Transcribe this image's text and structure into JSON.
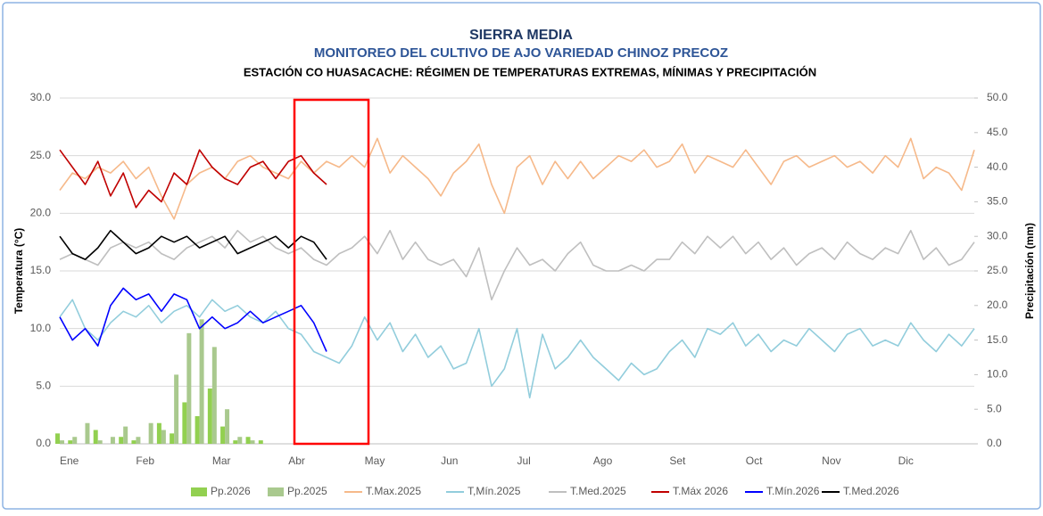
{
  "chart_data": {
    "type": "line",
    "title": "SIERRA MEDIA",
    "subtitle": "MONITOREO DEL CULTIVO DE AJO VARIEDAD CHINOZ PRECOZ",
    "subtitle2": "ESTACIÓN CO HUASACACHE: RÉGIMEN DE TEMPERATURAS EXTREMAS, MÍNIMAS Y PRECIPITACIÓN",
    "ylabel": "Temperatura (°C)",
    "y2label": "Precipitación (mm)",
    "categories": [
      "Ene",
      null,
      null,
      null,
      null,
      null,
      "Feb",
      null,
      null,
      null,
      null,
      null,
      "Mar",
      null,
      null,
      null,
      null,
      null,
      "Abr",
      null,
      null,
      null,
      null,
      null,
      "May",
      null,
      null,
      null,
      null,
      null,
      "Jun",
      null,
      null,
      null,
      null,
      null,
      "Jul",
      null,
      null,
      null,
      null,
      null,
      "Ago",
      null,
      null,
      null,
      null,
      null,
      "Set",
      null,
      null,
      null,
      null,
      null,
      "Oct",
      null,
      null,
      null,
      null,
      null,
      "Nov",
      null,
      null,
      null,
      null,
      null,
      "Dic",
      null,
      null,
      null,
      null,
      null,
      null
    ],
    "ylim": [
      0,
      30
    ],
    "yticks": [
      {
        "value": 0,
        "label": "0.0"
      },
      {
        "value": 5,
        "label": "5.0"
      },
      {
        "value": 10,
        "label": "10.0"
      },
      {
        "value": 15,
        "label": "15.0"
      },
      {
        "value": 20,
        "label": "20.0"
      },
      {
        "value": 25,
        "label": "25.0"
      },
      {
        "value": 30,
        "label": "30.0"
      }
    ],
    "y2lim": [
      0,
      50
    ],
    "y2ticks": [
      {
        "value": 0,
        "label": "0.0"
      },
      {
        "value": 5,
        "label": "5.0"
      },
      {
        "value": 10,
        "label": "10.0"
      },
      {
        "value": 15,
        "label": "15.0"
      },
      {
        "value": 20,
        "label": "20.0"
      },
      {
        "value": 25,
        "label": "25.0"
      },
      {
        "value": 30,
        "label": "30.0"
      },
      {
        "value": 35,
        "label": "35.0"
      },
      {
        "value": 40,
        "label": "40.0"
      },
      {
        "value": 45,
        "label": "45.0"
      },
      {
        "value": 50,
        "label": "50.0"
      }
    ],
    "grid": true,
    "legend": "bottom",
    "series": [
      {
        "name": "Pp.2026",
        "type": "bar",
        "axis": "y2",
        "color": "#92d050",
        "values": [
          1.5,
          0.5,
          0.0,
          2.0,
          0.0,
          1.0,
          0.5,
          0.0,
          3.0,
          1.5,
          6.0,
          4.0,
          8.0,
          2.5,
          0.5,
          1.0,
          0.5,
          0.0,
          0.0,
          0.0,
          0.0,
          0.0,
          null,
          null,
          null,
          null,
          null,
          null,
          null,
          null,
          null,
          null,
          null,
          null,
          null,
          null,
          null,
          null,
          null,
          null,
          null,
          null,
          null,
          null,
          null,
          null,
          null,
          null,
          null,
          null,
          null,
          null,
          null,
          null,
          null,
          null,
          null,
          null,
          null,
          null,
          null,
          null,
          null,
          null,
          null,
          null,
          null,
          null,
          null,
          null,
          null,
          null,
          null
        ]
      },
      {
        "name": "Pp.2025",
        "type": "bar",
        "axis": "y2",
        "color": "#a9c98e",
        "values": [
          0.5,
          1.0,
          3.0,
          0.5,
          1.0,
          2.5,
          1.0,
          3.0,
          2.0,
          10.0,
          16.0,
          18.0,
          14.0,
          5.0,
          1.0,
          0.5,
          0.0,
          0.0,
          0.0,
          0.0,
          0.0,
          0.0,
          0.0,
          0.0,
          0.0,
          0.0,
          0.0,
          0.0,
          0.0,
          0.0,
          0.0,
          0.0,
          0.0,
          0.0,
          0.0,
          0.0,
          0.0,
          0.0,
          0.0,
          0.0,
          0.0,
          0.0,
          0.0,
          0.0,
          0.0,
          0.0,
          0.0,
          0.0,
          0.0,
          0.0,
          0.0,
          0.0,
          0.0,
          0.0,
          0.0,
          0.0,
          0.0,
          0.0,
          0.0,
          0.0,
          0.0,
          0.0,
          0.0,
          0.0,
          0.0,
          0.0,
          0.0,
          0.0,
          0.0,
          0.0,
          0.0,
          0.0,
          0.0
        ]
      },
      {
        "name": "T.Max.2025",
        "color": "#f6b98a",
        "values": [
          22.0,
          23.5,
          23.0,
          24.0,
          23.5,
          24.5,
          23.0,
          24.0,
          21.5,
          19.5,
          22.5,
          23.5,
          24.0,
          23.0,
          24.5,
          25.0,
          24.0,
          23.5,
          23.0,
          24.5,
          23.5,
          24.5,
          24.0,
          25.0,
          24.0,
          26.5,
          23.5,
          25.0,
          24.0,
          23.0,
          21.5,
          23.5,
          24.5,
          26.0,
          22.5,
          20.0,
          24.0,
          25.0,
          22.5,
          24.5,
          23.0,
          24.5,
          23.0,
          24.0,
          25.0,
          24.5,
          25.5,
          24.0,
          24.5,
          26.0,
          23.5,
          25.0,
          24.5,
          24.0,
          25.5,
          24.0,
          22.5,
          24.5,
          25.0,
          24.0,
          24.5,
          25.0,
          24.0,
          24.5,
          23.5,
          25.0,
          24.0,
          26.5,
          23.0,
          24.0,
          23.5,
          22.0,
          25.5
        ]
      },
      {
        "name": "T,Mín.2025",
        "color": "#92cddc",
        "values": [
          11.0,
          12.5,
          10.0,
          9.0,
          10.5,
          11.5,
          11.0,
          12.0,
          10.5,
          11.5,
          12.0,
          11.0,
          12.5,
          11.5,
          12.0,
          11.0,
          10.5,
          11.5,
          10.0,
          9.5,
          8.0,
          7.5,
          7.0,
          8.5,
          11.0,
          9.0,
          10.5,
          8.0,
          9.5,
          7.5,
          8.5,
          6.5,
          7.0,
          10.0,
          5.0,
          6.5,
          10.0,
          4.0,
          9.5,
          6.5,
          7.5,
          9.0,
          7.5,
          6.5,
          5.5,
          7.0,
          6.0,
          6.5,
          8.0,
          9.0,
          7.5,
          10.0,
          9.5,
          10.5,
          8.5,
          9.5,
          8.0,
          9.0,
          8.5,
          10.0,
          9.0,
          8.0,
          9.5,
          10.0,
          8.5,
          9.0,
          8.5,
          10.5,
          9.0,
          8.0,
          9.5,
          8.5,
          10.0
        ]
      },
      {
        "name": "T.Med.2025",
        "color": "#bfbfbf",
        "values": [
          16.0,
          16.5,
          16.0,
          15.5,
          17.0,
          17.5,
          17.0,
          17.5,
          16.5,
          16.0,
          17.0,
          17.5,
          18.0,
          17.0,
          18.5,
          17.5,
          18.0,
          17.0,
          16.5,
          17.0,
          16.0,
          15.5,
          16.5,
          17.0,
          18.0,
          16.5,
          18.5,
          16.0,
          17.5,
          16.0,
          15.5,
          16.0,
          14.5,
          17.0,
          12.5,
          15.0,
          17.0,
          15.5,
          16.0,
          15.0,
          16.5,
          17.5,
          15.5,
          15.0,
          15.0,
          15.5,
          15.0,
          16.0,
          16.0,
          17.5,
          16.5,
          18.0,
          17.0,
          18.0,
          16.5,
          17.5,
          16.0,
          17.0,
          15.5,
          16.5,
          17.0,
          16.0,
          17.5,
          16.5,
          16.0,
          17.0,
          16.5,
          18.5,
          16.0,
          17.0,
          15.5,
          16.0,
          17.5
        ]
      },
      {
        "name": "T.Máx 2026",
        "color": "#c00000",
        "values": [
          25.5,
          24.0,
          22.5,
          24.5,
          21.5,
          23.5,
          20.5,
          22.0,
          21.0,
          23.5,
          22.5,
          25.5,
          24.0,
          23.0,
          22.5,
          24.0,
          24.5,
          23.0,
          24.5,
          25.0,
          23.5,
          22.5,
          null,
          null,
          null,
          null,
          null,
          null,
          null,
          null,
          null,
          null,
          null,
          null,
          null,
          null,
          null,
          null,
          null,
          null,
          null,
          null,
          null,
          null,
          null,
          null,
          null,
          null,
          null,
          null,
          null,
          null,
          null,
          null,
          null,
          null,
          null,
          null,
          null,
          null,
          null,
          null,
          null,
          null,
          null,
          null,
          null,
          null,
          null,
          null,
          null,
          null,
          null
        ]
      },
      {
        "name": "T.Mín.2026",
        "color": "#0000ff",
        "values": [
          11.0,
          9.0,
          10.0,
          8.5,
          12.0,
          13.5,
          12.5,
          13.0,
          11.5,
          13.0,
          12.5,
          10.0,
          11.0,
          10.0,
          10.5,
          11.5,
          10.5,
          11.0,
          11.5,
          12.0,
          10.5,
          8.0,
          null,
          null,
          null,
          null,
          null,
          null,
          null,
          null,
          null,
          null,
          null,
          null,
          null,
          null,
          null,
          null,
          null,
          null,
          null,
          null,
          null,
          null,
          null,
          null,
          null,
          null,
          null,
          null,
          null,
          null,
          null,
          null,
          null,
          null,
          null,
          null,
          null,
          null,
          null,
          null,
          null,
          null,
          null,
          null,
          null,
          null,
          null,
          null,
          null,
          null,
          null
        ]
      },
      {
        "name": "T.Med.2026",
        "color": "#000000",
        "values": [
          18.0,
          16.5,
          16.0,
          17.0,
          18.5,
          17.5,
          16.5,
          17.0,
          18.0,
          17.5,
          18.0,
          17.0,
          17.5,
          18.0,
          16.5,
          17.0,
          17.5,
          18.0,
          17.0,
          18.0,
          17.5,
          16.0,
          null,
          null,
          null,
          null,
          null,
          null,
          null,
          null,
          null,
          null,
          null,
          null,
          null,
          null,
          null,
          null,
          null,
          null,
          null,
          null,
          null,
          null,
          null,
          null,
          null,
          null,
          null,
          null,
          null,
          null,
          null,
          null,
          null,
          null,
          null,
          null,
          null,
          null,
          null,
          null,
          null,
          null,
          null,
          null,
          null,
          null,
          null,
          null,
          null,
          null,
          null
        ]
      }
    ]
  }
}
